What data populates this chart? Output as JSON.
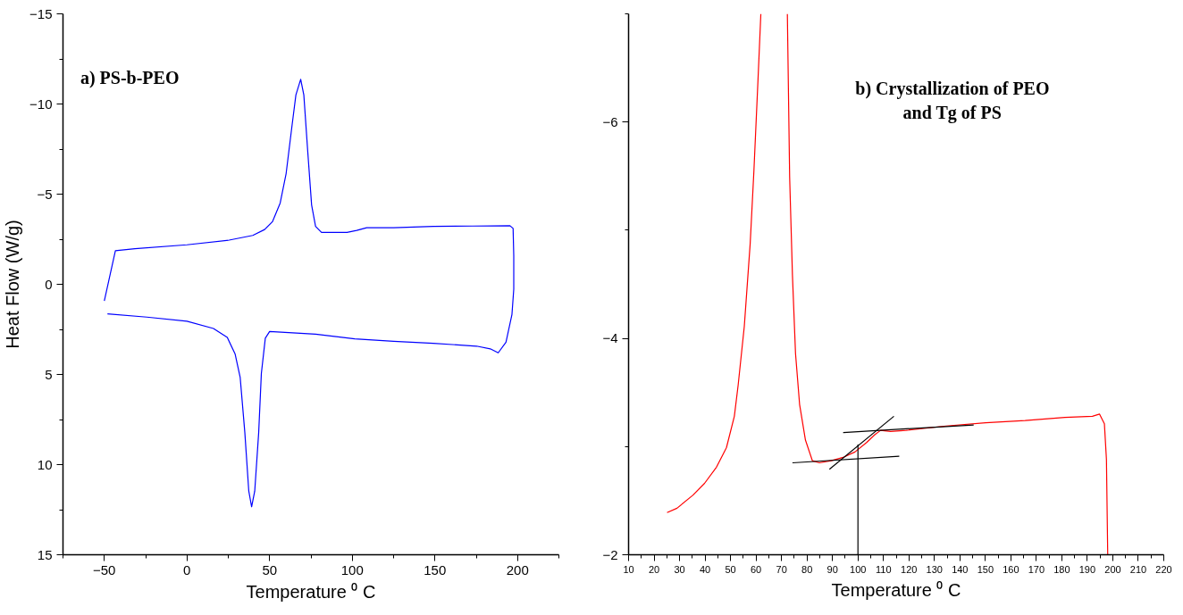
{
  "chart_data": [
    {
      "type": "line",
      "xlabel": "Temperature ⁰ C",
      "ylabel": "Heat Flow (W/g)",
      "annotations": [
        "a) PS-b-PEO"
      ],
      "xlim": [
        -75,
        225
      ],
      "ylim": [
        15,
        -15
      ],
      "xticks": [
        {
          "value": -75,
          "label": null
        },
        -50,
        {
          "value": -25,
          "label": null
        },
        0,
        {
          "value": 25,
          "label": null
        },
        50,
        {
          "value": 75,
          "label": null
        },
        100,
        {
          "value": 125,
          "label": null
        },
        150,
        {
          "value": 175,
          "label": null
        },
        200,
        {
          "value": 225,
          "label": null
        }
      ],
      "yticks": [
        -15,
        {
          "value": -12.5,
          "label": null
        },
        -10,
        {
          "value": -7.5,
          "label": null
        },
        -5,
        {
          "value": -2.5,
          "label": null
        },
        0,
        {
          "value": 2.5,
          "label": null
        },
        5,
        {
          "value": 7.5,
          "label": null
        },
        10,
        {
          "value": 12.5,
          "label": null
        },
        15
      ],
      "grid": false,
      "marker": "none",
      "line_style": "solid",
      "series": [
        {
          "color": "#0000ff",
          "x": [
            -50,
            -43.3,
            -31.5,
            0,
            25.5,
            39.8,
            47,
            51.7,
            56.4,
            60,
            63.5,
            65.9,
            68.8,
            70.7,
            73,
            75.4,
            77.8,
            81.4,
            96.8,
            102.7,
            108.7,
            125,
            149,
            172.8,
            195.4,
            197.3,
            197.7,
            197.7,
            196.6,
            193,
            188.3,
            183.5,
            175.2,
            149,
            125,
            101.5,
            77.8,
            50,
            47.4,
            45,
            43.4,
            41,
            39.1,
            37.4,
            35,
            32.2,
            29.1,
            24.4,
            16,
            0,
            -24.3,
            -48.1
          ],
          "values": [
            0.92,
            -1.86,
            -1.97,
            -2.19,
            -2.45,
            -2.71,
            -3.04,
            -3.47,
            -4.51,
            -6.15,
            -8.76,
            -10.5,
            -11.37,
            -10.5,
            -7.45,
            -4.4,
            -3.21,
            -2.88,
            -2.88,
            -2.99,
            -3.14,
            -3.14,
            -3.21,
            -3.23,
            -3.25,
            -3.1,
            -1.58,
            0.27,
            1.68,
            3.21,
            3.8,
            3.58,
            3.43,
            3.27,
            3.16,
            3.03,
            2.77,
            2.62,
            2.99,
            4.95,
            8.21,
            11.47,
            12.34,
            11.47,
            8.21,
            5.17,
            3.86,
            2.95,
            2.45,
            2.05,
            1.82,
            1.64
          ]
        }
      ]
    },
    {
      "type": "line",
      "xlabel": "Temperature ⁰ C",
      "annotations": [
        "b) Crystallization of PEO\nand Tg of PS"
      ],
      "xlim": [
        10,
        220
      ],
      "ylim": [
        -2,
        -7
      ],
      "xticks": [
        10,
        {
          "value": 15,
          "label": null
        },
        20,
        {
          "value": 25,
          "label": null
        },
        30,
        {
          "value": 35,
          "label": null
        },
        40,
        {
          "value": 45,
          "label": null
        },
        50,
        {
          "value": 55,
          "label": null
        },
        60,
        {
          "value": 65,
          "label": null
        },
        70,
        {
          "value": 75,
          "label": null
        },
        80,
        {
          "value": 85,
          "label": null
        },
        90,
        {
          "value": 95,
          "label": null
        },
        100,
        {
          "value": 105,
          "label": null
        },
        110,
        {
          "value": 115,
          "label": null
        },
        120,
        {
          "value": 125,
          "label": null
        },
        130,
        {
          "value": 135,
          "label": null
        },
        140,
        {
          "value": 145,
          "label": null
        },
        150,
        {
          "value": 155,
          "label": null
        },
        160,
        {
          "value": 165,
          "label": null
        },
        170,
        {
          "value": 175,
          "label": null
        },
        180,
        {
          "value": 185,
          "label": null
        },
        190,
        {
          "value": 195,
          "label": null
        },
        200,
        {
          "value": 205,
          "label": null
        },
        210,
        {
          "value": 215,
          "label": null
        },
        220
      ],
      "yticks": [
        -2,
        {
          "value": -3,
          "label": null
        },
        -4,
        {
          "value": -5,
          "label": null
        },
        -6,
        {
          "value": -7,
          "label": null
        }
      ],
      "grid": false,
      "marker": "none",
      "line_style": "solid",
      "series": [
        {
          "color": "#ff0000",
          "x": [
            25.1,
            29,
            35.2,
            39.8,
            44.5,
            48.4,
            51.5,
            53,
            55.4,
            57.7,
            59.2,
            60.8,
            61.9,
            67,
            72.3,
            73.2,
            74.3,
            75.5,
            77.1,
            79.4,
            82.1,
            84.9,
            89.5,
            94.2,
            98.8,
            103.5,
            106.6,
            108.9,
            112.8,
            119,
            134.6,
            150.1,
            165.6,
            181.2,
            192,
            194.8,
            196.7,
            197.5,
            198
          ],
          "values": [
            -2.39,
            -2.43,
            -2.55,
            -2.66,
            -2.81,
            -2.99,
            -3.28,
            -3.57,
            -4.11,
            -4.87,
            -5.56,
            -6.4,
            -7.0,
            null,
            -7.0,
            -5.49,
            -4.58,
            -3.86,
            -3.39,
            -3.06,
            -2.87,
            -2.85,
            -2.87,
            -2.9,
            -2.95,
            -3.04,
            -3.11,
            -3.15,
            -3.14,
            -3.15,
            -3.19,
            -3.22,
            -3.24,
            -3.27,
            -3.28,
            -3.3,
            -3.21,
            -2.88,
            -2.0
          ]
        },
        {
          "color": "#000000",
          "x": [
            74.3,
            116.2
          ],
          "values": [
            -2.85,
            -2.91
          ]
        },
        {
          "color": "#000000",
          "x": [
            94.2,
            145.4
          ],
          "values": [
            -3.13,
            -3.2
          ]
        },
        {
          "color": "#000000",
          "x": [
            88.8,
            114.1
          ],
          "values": [
            -2.79,
            -3.28
          ]
        },
        {
          "color": "#000000",
          "x": [
            100,
            100
          ],
          "values": [
            -2.0,
            -3.02
          ]
        }
      ]
    }
  ]
}
